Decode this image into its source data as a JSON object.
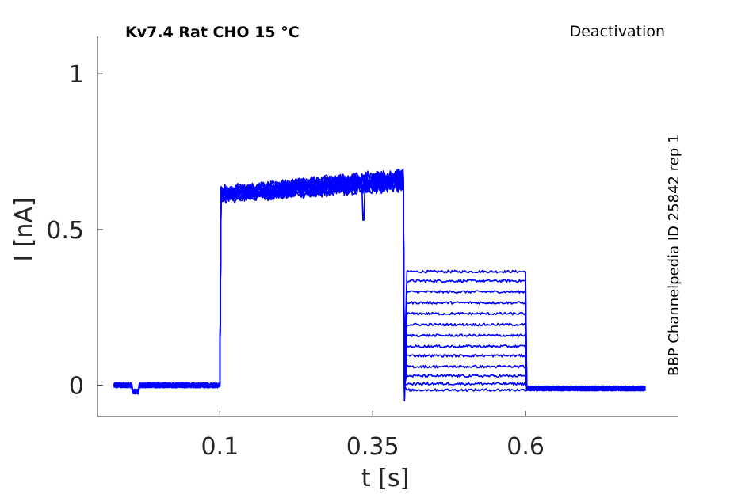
{
  "chart_data": {
    "type": "line",
    "title": "Kv7.4  Rat  CHO  15 °C",
    "protocol": "Deactivation",
    "side_note": "BBP Channelpedia ID 25842 rep 1",
    "xlabel": "t [s]",
    "ylabel": "I [nA]",
    "xlim": [
      -0.1,
      0.85
    ],
    "ylim": [
      -0.1,
      1.12
    ],
    "x_ticks": [
      0.1,
      0.35,
      0.6
    ],
    "x_tick_labels": [
      "0.1",
      "0.35",
      "0.6"
    ],
    "y_ticks": [
      0,
      0.5,
      1
    ],
    "y_tick_labels": [
      "0",
      "0.5",
      "1"
    ],
    "grid": false,
    "line_color": "#0000ff",
    "segments": [
      {
        "name": "baseline",
        "t_start": -0.073,
        "t_end": 0.1,
        "current": 0.0
      },
      {
        "name": "activation step",
        "t_start": 0.1,
        "t_end": 0.4,
        "current_start": 0.615,
        "current_end": 0.66
      },
      {
        "name": "deactivation steps",
        "t_start": 0.4,
        "t_end": 0.6
      },
      {
        "name": "return to holding",
        "t_start": 0.6,
        "t_end": 0.797,
        "current": -0.01
      }
    ],
    "deactivation_levels": [
      0.365,
      0.335,
      0.3,
      0.265,
      0.23,
      0.195,
      0.16,
      0.125,
      0.095,
      0.06,
      0.03,
      0.005,
      -0.015
    ]
  }
}
